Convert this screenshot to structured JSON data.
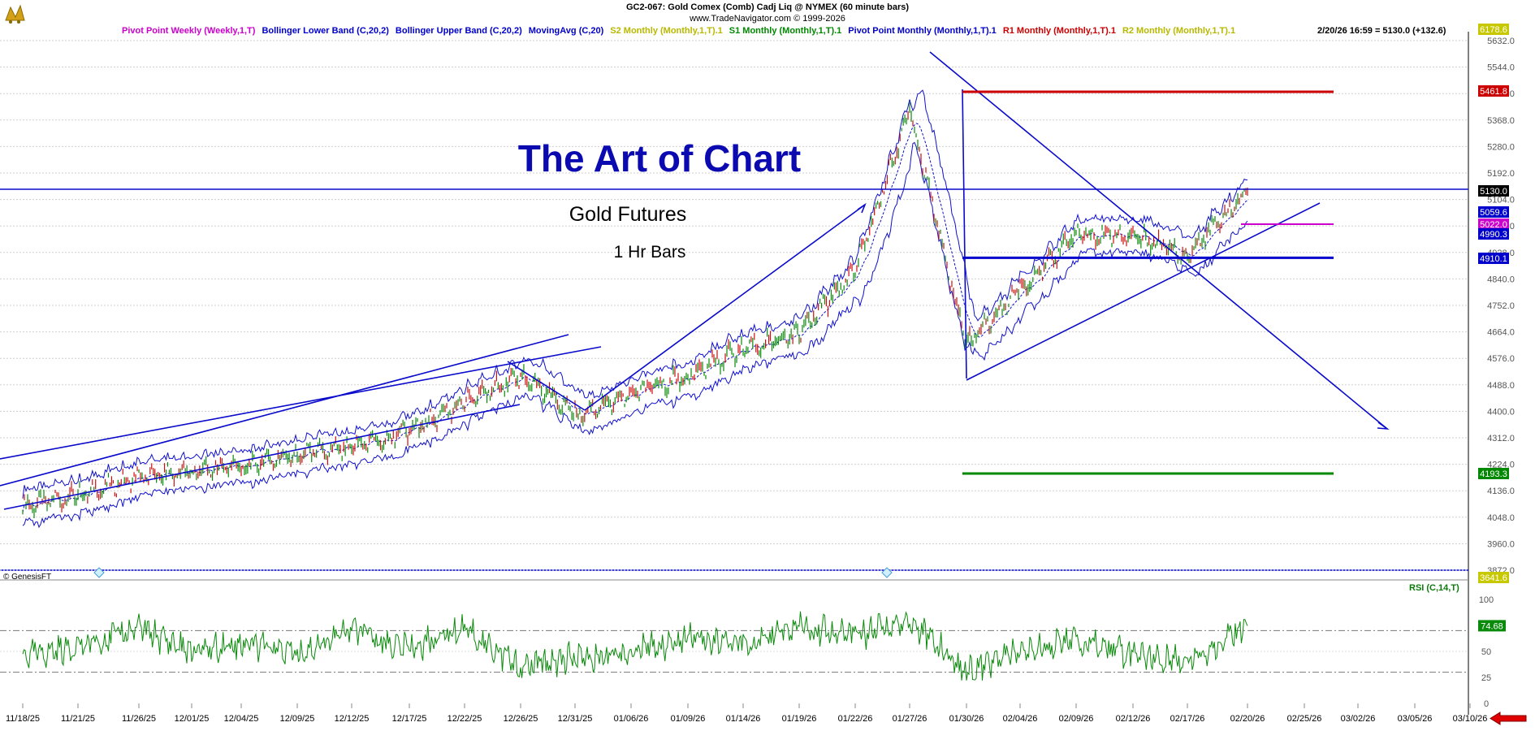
{
  "header": {
    "title": "GC2-067:  Gold Comex (Comb) Cadj Liq @ NYMEX  (60 minute bars)",
    "copyright": "www.TradeNavigator.com © 1999-2026",
    "timestamp": "2/20/26 16:59 = 5130.0 (+132.6)"
  },
  "legend": [
    {
      "label": "Pivot Point Weekly (Weekly,1,T)",
      "color": "#cc00cc"
    },
    {
      "label": "Bollinger Lower Band (C,20,2)",
      "color": "#0000cc"
    },
    {
      "label": "Bollinger Upper Band (C,20,2)",
      "color": "#0000cc"
    },
    {
      "label": "MovingAvg (C,20)",
      "color": "#0000cc"
    },
    {
      "label": "S2 Monthly (Monthly,1,T).1",
      "color": "#b8b800"
    },
    {
      "label": "S1 Monthly (Monthly,1,T).1",
      "color": "#008800"
    },
    {
      "label": "Pivot Point Monthly (Monthly,1,T).1",
      "color": "#0000cc"
    },
    {
      "label": "R1 Monthly (Monthly,1,T).1",
      "color": "#cc0000"
    },
    {
      "label": "R2 Monthly (Monthly,1,T).1",
      "color": "#b8b800"
    }
  ],
  "annotations": {
    "headline": "The Art of Chart",
    "subtitle": "Gold Futures",
    "bars_note": "1 Hr Bars",
    "genesis": "© GenesisFT",
    "rsi_label": "RSI (C,14,T)"
  },
  "chart_data": [
    {
      "type": "line",
      "title": "GC2-067:  Gold Comex (Comb) Cadj Liq @ NYMEX  (60 minute bars)",
      "ylim": [
        3872,
        5632
      ],
      "yticks": [
        3872.0,
        3960.0,
        4048.0,
        4136.0,
        4224.0,
        4312.0,
        4400.0,
        4488.0,
        4576.0,
        4664.0,
        4752.0,
        4840.0,
        4928.0,
        5016.0,
        5104.0,
        5192.0,
        5280.0,
        5368.0,
        5456.0,
        5544.0,
        5632.0
      ],
      "x_labels": [
        "11/18/25",
        "11/21/25",
        "11/26/25",
        "12/01/25",
        "12/04/25",
        "12/09/25",
        "12/12/25",
        "12/17/25",
        "12/22/25",
        "12/26/25",
        "12/31/25",
        "01/06/26",
        "01/09/26",
        "01/14/26",
        "01/19/26",
        "01/22/26",
        "01/27/26",
        "01/30/26",
        "02/04/26",
        "02/09/26",
        "02/12/26",
        "02/17/26",
        "02/20/26",
        "02/25/26",
        "03/02/26",
        "03/05/26",
        "03/10/26"
      ],
      "grid": true,
      "series": [
        {
          "name": "",
          "color": "#0a7a20",
          "x": [
            "11/18/25",
            "11/21/25",
            "11/26/25",
            "12/01/25",
            "12/04/25",
            "12/09/25",
            "12/12/25",
            "12/17/25",
            "12/22/25",
            "12/26/25",
            "12/31/25",
            "01/06/26",
            "01/09/26",
            "01/14/26",
            "01/19/26",
            "01/22/26",
            "01/27/26",
            "01/30/26",
            "02/04/26",
            "02/09/26",
            "02/12/26",
            "02/17/26",
            "02/20/26"
          ],
          "values": [
            4085,
            4120,
            4180,
            4200,
            4215,
            4255,
            4285,
            4330,
            4430,
            4520,
            4390,
            4455,
            4520,
            4610,
            4660,
            4870,
            5400,
            4620,
            4800,
            4990,
            4985,
            4920,
            5130
          ]
        }
      ],
      "levels": [
        {
          "name": "R1 Monthly",
          "value": 5461.8,
          "color": "#cc0000"
        },
        {
          "name": "Pivot Point Monthly",
          "value": 4910.1,
          "color": "#0000cc"
        },
        {
          "name": "S1 Monthly",
          "value": 4193.3,
          "color": "#008800"
        },
        {
          "name": "Pivot Point Weekly",
          "value": 5022.0,
          "color": "#cc00cc"
        },
        {
          "name": "Last",
          "value": 5130.0,
          "color": "#000000"
        }
      ],
      "price_tags": [
        {
          "value": "6178.6",
          "color": "#c8c800",
          "text_color": "#ffffff"
        },
        {
          "value": "5461.8",
          "color": "#cc0000",
          "text_color": "#ffffff"
        },
        {
          "value": "5130.0",
          "color": "#000000",
          "text_color": "#ffffff"
        },
        {
          "value": "5059.6",
          "color": "#0000cc",
          "text_color": "#ffffff"
        },
        {
          "value": "5022.0",
          "color": "#cc00cc",
          "text_color": "#ffffff"
        },
        {
          "value": "4990.3",
          "color": "#0000cc",
          "text_color": "#ffffff"
        },
        {
          "value": "4910.1",
          "color": "#0000cc",
          "text_color": "#ffffff"
        },
        {
          "value": "4193.3",
          "color": "#008800",
          "text_color": "#ffffff"
        },
        {
          "value": "3641.6",
          "color": "#c8c800",
          "text_color": "#ffffff"
        }
      ]
    },
    {
      "type": "line",
      "title": "RSI (C,14,T)",
      "ylim": [
        0,
        100
      ],
      "yticks": [
        0,
        25,
        50,
        75,
        100
      ],
      "reference_lines": [
        30,
        70
      ],
      "series": [
        {
          "name": "RSI (C,14,T)",
          "color": "#0a8a0a",
          "x": [
            "11/18/25",
            "11/21/25",
            "11/26/25",
            "12/01/25",
            "12/04/25",
            "12/09/25",
            "12/12/25",
            "12/17/25",
            "12/22/25",
            "12/26/25",
            "12/31/25",
            "01/06/26",
            "01/09/26",
            "01/14/26",
            "01/19/26",
            "01/22/26",
            "01/27/26",
            "01/30/26",
            "02/04/26",
            "02/09/26",
            "02/12/26",
            "02/17/26",
            "02/20/26"
          ],
          "values": [
            45,
            55,
            72,
            50,
            58,
            48,
            70,
            52,
            73,
            35,
            45,
            50,
            62,
            55,
            75,
            65,
            80,
            30,
            50,
            62,
            45,
            40,
            74.68
          ]
        }
      ],
      "last_value": "74.68"
    }
  ]
}
